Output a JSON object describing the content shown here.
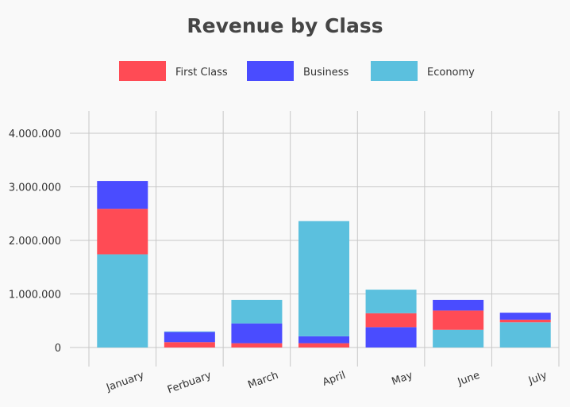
{
  "chart_data": {
    "type": "bar",
    "stacked": true,
    "title": "Revenue by Class",
    "categories": [
      "January",
      "Ferbuary",
      "March",
      "April",
      "May",
      "June",
      "July"
    ],
    "stack_order_bottom_to_top": [
      [
        "Economy",
        "First Class",
        "Business"
      ],
      [
        "First Class",
        "Business",
        "Economy"
      ],
      [
        "First Class",
        "Business",
        "Economy"
      ],
      [
        "First Class",
        "Business",
        "Economy"
      ],
      [
        "Business",
        "First Class",
        "Economy"
      ],
      [
        "Economy",
        "First Class",
        "Business"
      ],
      [
        "Economy",
        "First Class",
        "Business"
      ]
    ],
    "series": [
      {
        "name": "First Class",
        "color": "#ff4b55",
        "values": [
          850000,
          100000,
          80000,
          80000,
          260000,
          360000,
          50000
        ]
      },
      {
        "name": "Business",
        "color": "#4a4cff",
        "values": [
          520000,
          190000,
          370000,
          130000,
          380000,
          200000,
          130000
        ]
      },
      {
        "name": "Economy",
        "color": "#5bc0de",
        "values": [
          1740000,
          10000,
          440000,
          2150000,
          440000,
          330000,
          470000
        ]
      }
    ],
    "ylim": [
      0,
      4000000
    ],
    "yticks": [
      0,
      1000000,
      2000000,
      3000000,
      4000000
    ],
    "ytick_labels": [
      "0",
      "1.000.000",
      "2.000.000",
      "3.000.000",
      "4.000.000"
    ],
    "grid": true,
    "legend_position": "top-center"
  }
}
